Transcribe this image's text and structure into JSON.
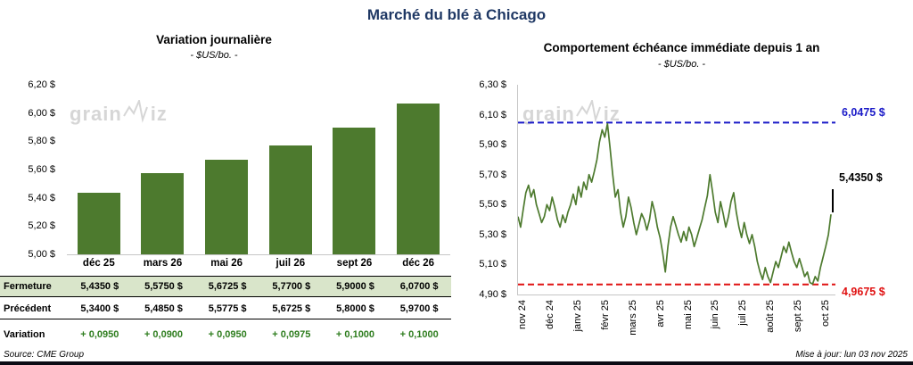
{
  "page": {
    "title": "Marché du blé à Chicago",
    "source": "Source: CME Group",
    "updated": "Mise à jour: lun 03 nov 2025",
    "watermark": {
      "part1": "grain",
      "part2": "iz"
    }
  },
  "table": {
    "rows": [
      {
        "label": "Fermeture",
        "values": [
          "5,4350  $",
          "5,5750  $",
          "5,6725  $",
          "5,7700  $",
          "5,9000  $",
          "6,0700  $"
        ]
      },
      {
        "label": "Précédent",
        "values": [
          "5,3400  $",
          "5,4850  $",
          "5,5775  $",
          "5,6725  $",
          "5,8000  $",
          "5,9700  $"
        ]
      },
      {
        "label": "Variation",
        "values": [
          "+ 0,0950",
          "+ 0,0900",
          "+ 0,0950",
          "+ 0,0975",
          "+ 0,1000",
          "+ 0,1000"
        ]
      }
    ]
  },
  "chart_data": [
    {
      "type": "bar",
      "title": "Variation  journalière",
      "subtitle": "- $US/bo. -",
      "categories": [
        "déc 25",
        "mars 26",
        "mai 26",
        "juil 26",
        "sept 26",
        "déc 26"
      ],
      "values": [
        5.435,
        5.575,
        5.6725,
        5.77,
        5.9,
        6.07
      ],
      "ylim": [
        5.0,
        6.2
      ],
      "yticks": [
        "6,20 $",
        "6,00 $",
        "5,80 $",
        "5,60 $",
        "5,40 $",
        "5,20 $",
        "5,00 $"
      ],
      "bar_color": "#4d7a2e",
      "grid": false,
      "legend": "none"
    },
    {
      "type": "line",
      "title": "Comportement  échéance  immédiate  depuis  1 an",
      "subtitle": "- $US/bo. -",
      "ylim": [
        4.9,
        6.3
      ],
      "yticks": [
        "6,30 $",
        "6,10 $",
        "5,90 $",
        "5,70 $",
        "5,50 $",
        "5,30 $",
        "5,10 $",
        "4,90 $"
      ],
      "x_labels": [
        "nov 24",
        "déc 24",
        "janv 25",
        "févr 25",
        "mars 25",
        "avr 25",
        "mai 25",
        "juin 25",
        "juil 25",
        "août 25",
        "sept 25",
        "oct 25"
      ],
      "series": [
        {
          "name": "échéance immédiate",
          "color": "#4d7a2e",
          "values": [
            5.42,
            5.35,
            5.47,
            5.58,
            5.63,
            5.55,
            5.6,
            5.5,
            5.44,
            5.38,
            5.42,
            5.5,
            5.46,
            5.55,
            5.48,
            5.4,
            5.35,
            5.43,
            5.38,
            5.45,
            5.5,
            5.57,
            5.5,
            5.62,
            5.55,
            5.65,
            5.6,
            5.7,
            5.65,
            5.72,
            5.8,
            5.92,
            6.0,
            5.95,
            6.04,
            5.88,
            5.7,
            5.55,
            5.6,
            5.45,
            5.35,
            5.42,
            5.55,
            5.48,
            5.38,
            5.3,
            5.37,
            5.44,
            5.4,
            5.33,
            5.4,
            5.52,
            5.45,
            5.35,
            5.28,
            5.18,
            5.05,
            5.22,
            5.35,
            5.42,
            5.36,
            5.3,
            5.25,
            5.32,
            5.26,
            5.35,
            5.3,
            5.22,
            5.28,
            5.34,
            5.4,
            5.48,
            5.56,
            5.7,
            5.58,
            5.45,
            5.38,
            5.52,
            5.44,
            5.35,
            5.42,
            5.52,
            5.58,
            5.45,
            5.35,
            5.28,
            5.38,
            5.3,
            5.24,
            5.3,
            5.22,
            5.12,
            5.05,
            5.0,
            5.08,
            5.02,
            4.98,
            5.05,
            5.12,
            5.08,
            5.15,
            5.22,
            5.18,
            5.25,
            5.18,
            5.12,
            5.08,
            5.14,
            5.08,
            5.02,
            5.05,
            4.98,
            4.97,
            5.02,
            4.99,
            5.08,
            5.15,
            5.22,
            5.3,
            5.435
          ]
        }
      ],
      "hlines": [
        {
          "value": 6.0475,
          "label": "6,0475  $",
          "color": "#1a1ac8",
          "style": "dashed"
        },
        {
          "value": 4.9675,
          "label": "4,9675  $",
          "color": "#e01212",
          "style": "dashed"
        }
      ],
      "last_label": {
        "value": 5.435,
        "label": "5,4350  $"
      },
      "grid": false,
      "legend": "none"
    }
  ]
}
